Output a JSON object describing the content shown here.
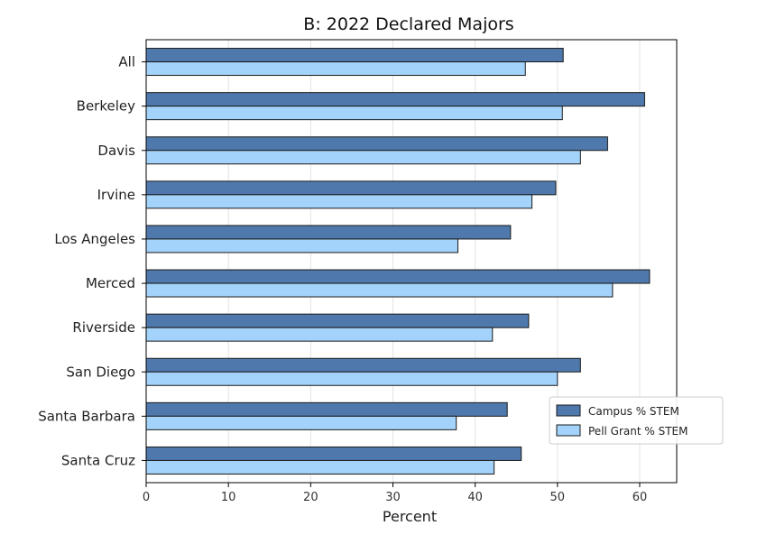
{
  "chart_data": {
    "type": "bar",
    "orientation": "horizontal",
    "title": "B: 2022 Declared Majors",
    "xlabel": "Percent",
    "ylabel": "",
    "xlim": [
      0,
      64.5
    ],
    "xticks": [
      0,
      10,
      20,
      30,
      40,
      50,
      60
    ],
    "grid": true,
    "legend_position": "lower-right",
    "categories": [
      "All",
      "Berkeley",
      "Davis",
      "Irvine",
      "Los Angeles",
      "Merced",
      "Riverside",
      "San Diego",
      "Santa Barbara",
      "Santa Cruz"
    ],
    "series": [
      {
        "name": "Campus % STEM",
        "color": "#4f79ac",
        "values": [
          50.7,
          60.6,
          56.1,
          49.8,
          44.3,
          61.2,
          46.5,
          52.8,
          43.9,
          45.6
        ]
      },
      {
        "name": "Pell Grant % STEM",
        "color": "#a3d2fa",
        "values": [
          46.1,
          50.6,
          52.8,
          46.9,
          37.9,
          56.7,
          42.1,
          50.0,
          37.7,
          42.3
        ]
      }
    ]
  }
}
